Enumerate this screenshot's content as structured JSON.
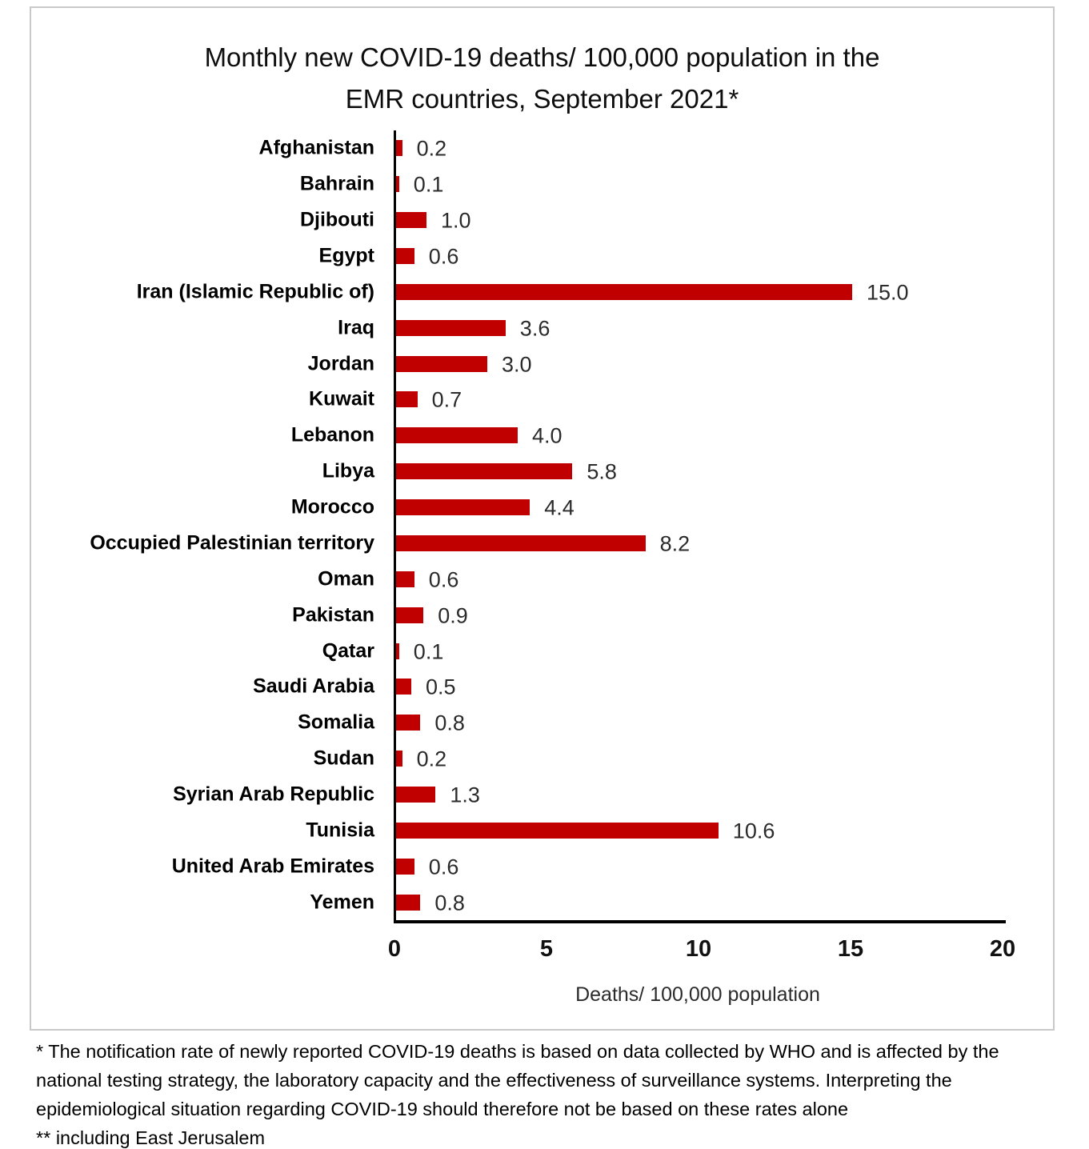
{
  "chart_data": {
    "type": "bar",
    "orientation": "horizontal",
    "title": "Monthly new COVID-19 deaths/ 100,000 population in the EMR countries, September 2021*",
    "title_lines": [
      "Monthly new COVID-19 deaths/ 100,000 population in the",
      "EMR countries, September 2021*"
    ],
    "xlabel": "Deaths/ 100,000 population",
    "xlim": [
      0,
      20
    ],
    "x_ticks": [
      0,
      5,
      10,
      15,
      20
    ],
    "bar_color": "#c00000",
    "grid": "off",
    "legend": "none",
    "categories": [
      "Afghanistan",
      "Bahrain",
      "Djibouti",
      "Egypt",
      "Iran (Islamic Republic of)",
      "Iraq",
      "Jordan",
      "Kuwait",
      "Lebanon",
      "Libya",
      "Morocco",
      "Occupied Palestinian territory",
      "Oman",
      "Pakistan",
      "Qatar",
      "Saudi Arabia",
      "Somalia",
      "Sudan",
      "Syrian Arab Republic",
      "Tunisia",
      "United Arab Emirates",
      "Yemen"
    ],
    "values": [
      0.2,
      0.1,
      1.0,
      0.6,
      15.0,
      3.6,
      3.0,
      0.7,
      4.0,
      5.8,
      4.4,
      8.2,
      0.6,
      0.9,
      0.1,
      0.5,
      0.8,
      0.2,
      1.3,
      10.6,
      0.6,
      0.8
    ],
    "value_labels": [
      "0.2",
      "0.1",
      "1.0",
      "0.6",
      "15.0",
      "3.6",
      "3.0",
      "0.7",
      "4.0",
      "5.8",
      "4.4",
      "8.2",
      "0.6",
      "0.9",
      "0.1",
      "0.5",
      "0.8",
      "0.2",
      "1.3",
      "10.6",
      "0.6",
      "0.8"
    ]
  },
  "footnotes": {
    "note1": "* The notification rate of newly reported COVID-19 deaths is based on data collected by WHO and is affected by the national testing strategy, the laboratory capacity and the effectiveness of surveillance systems. Interpreting the epidemiological situation regarding COVID-19 should therefore not be based on these rates alone",
    "note2": "** including East Jerusalem"
  }
}
